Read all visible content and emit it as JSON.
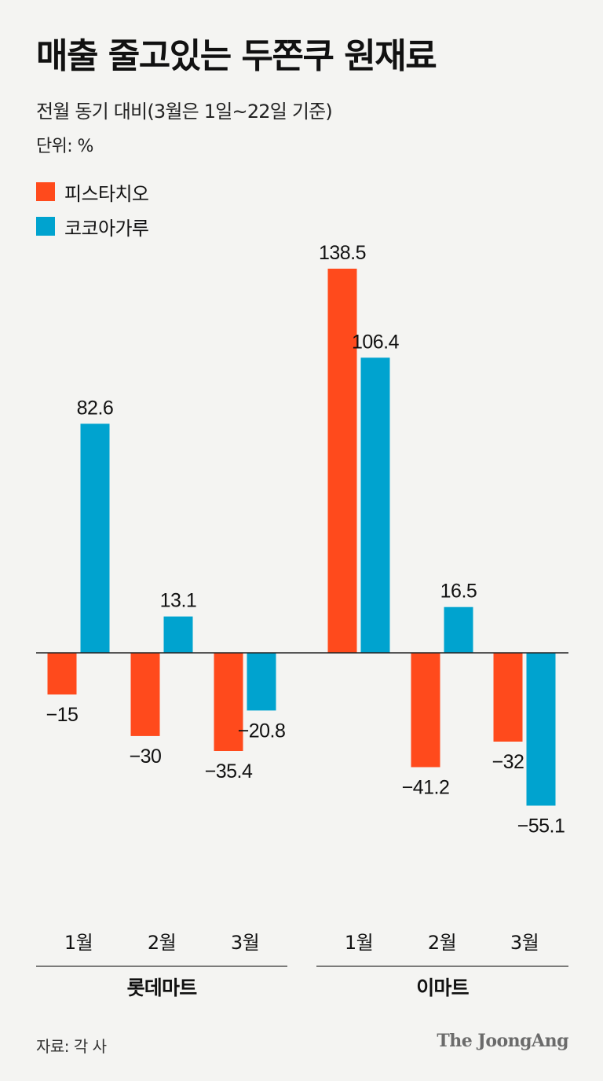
{
  "title": "매출 줄고있는 두쫀쿠 원재료",
  "subtitle": "전월 동기 대비(3월은 1일~22일 기준)",
  "unit": "단위: %",
  "source": "자료: 각 사",
  "brand": "The JoongAng",
  "colors": {
    "pistachio": "#ff4a1c",
    "cocoa": "#00a3cf",
    "axis": "#222222"
  },
  "chart_data": {
    "type": "bar",
    "title": "매출 줄고있는 두쫀쿠 원재료",
    "subtitle": "전월 동기 대비(3월은 1일~22일 기준)",
    "ylabel": "단위: %",
    "xlabel": "",
    "legend_position": "top-left",
    "groups": [
      "롯데마트",
      "이마트"
    ],
    "categories": [
      "1월",
      "2월",
      "3월",
      "1월",
      "2월",
      "3월"
    ],
    "series": [
      {
        "name": "피스타치오",
        "color": "#ff4a1c",
        "values": [
          -15,
          -30,
          -35.4,
          138.5,
          -41.2,
          -32
        ]
      },
      {
        "name": "코코아가루",
        "color": "#00a3cf",
        "values": [
          82.6,
          13.1,
          -20.8,
          106.4,
          16.5,
          -55.1
        ]
      }
    ],
    "value_labels": [
      [
        "−15",
        "−30",
        "−35.4",
        "138.5",
        "−41.2",
        "−32"
      ],
      [
        "82.6",
        "13.1",
        "−20.8",
        "106.4",
        "16.5",
        "−55.1"
      ]
    ]
  }
}
